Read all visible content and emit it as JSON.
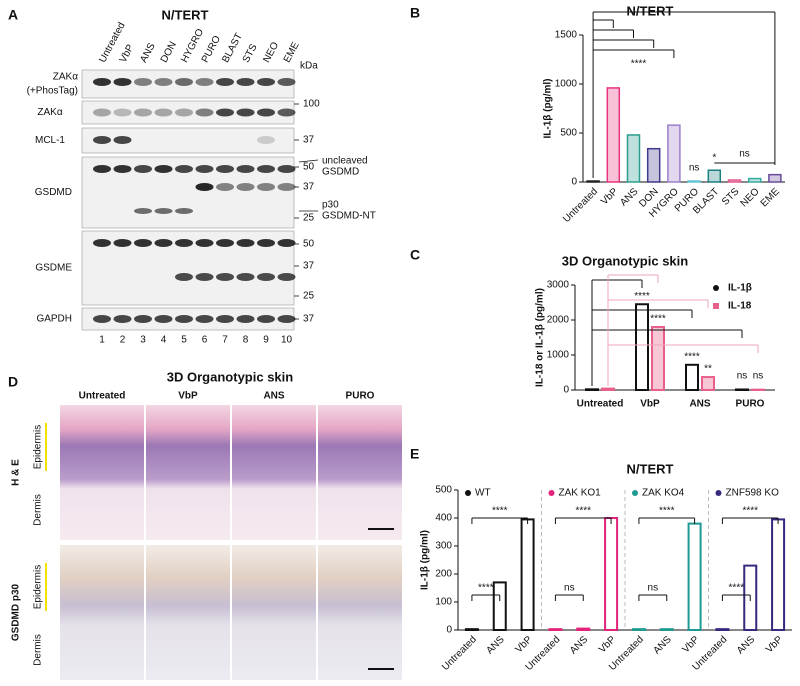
{
  "panel_a": {
    "label": "A",
    "title": "N/TERT",
    "lanes": [
      "Untreated",
      "VbP",
      "ANS",
      "DON",
      "HYGRO",
      "PURO",
      "BLAST",
      "STS",
      "NEO",
      "EME"
    ],
    "kda": "kDa",
    "rows": [
      {
        "label": "ZAKα",
        "sublabel": "(+PhosTag)",
        "markers": []
      },
      {
        "label": "ZAKα",
        "markers": [
          100
        ]
      },
      {
        "label": "MCL-1",
        "markers": [
          37
        ]
      },
      {
        "label": "GSDMD",
        "markers": [
          50,
          37,
          25
        ]
      },
      {
        "label": "GSDME",
        "markers": [
          50,
          37,
          25
        ]
      },
      {
        "label": "GAPDH",
        "markers": [
          37
        ]
      }
    ],
    "uncleaved": [
      "uncleaved",
      "GSDMD"
    ],
    "p30": [
      "p30",
      "GSDMD-NT"
    ],
    "lane_numbers": [
      1,
      2,
      3,
      4,
      5,
      6,
      7,
      8,
      9,
      10
    ]
  },
  "panel_d": {
    "label": "D",
    "title": "3D Organotypic skin",
    "columns": [
      "Untreated",
      "VbP",
      "ANS",
      "PURO"
    ],
    "rows": [
      "H & E",
      "GSDMD p30"
    ],
    "layers": [
      "Epidermis",
      "Dermis"
    ]
  },
  "chart_data": [
    {
      "type": "bar",
      "label": "B",
      "title": "N/TERT",
      "y_label": "IL-1β (pg/ml)",
      "categories": [
        "Untreated",
        "VbP",
        "ANS",
        "DON",
        "HYGRO",
        "PURO",
        "BLAST",
        "STS",
        "NEO",
        "EME"
      ],
      "values": [
        10,
        960,
        480,
        340,
        580,
        10,
        120,
        20,
        35,
        75
      ],
      "colors": [
        "#222222",
        "#e8337f",
        "#2a9d8f",
        "#3f3a8c",
        "#9b7fc9",
        "#63c5d6",
        "#1d7f7f",
        "#e2558c",
        "#35a8a0",
        "#6a4c9c"
      ],
      "ylim": [
        0,
        1500
      ],
      "yticks": [
        0,
        500,
        1000,
        1500
      ],
      "significance": [
        "****",
        "ns",
        "*",
        "ns"
      ]
    },
    {
      "type": "grouped_bar",
      "label": "C",
      "title": "3D Organotypic skin",
      "y_label": "IL-18 or IL-1β (pg/ml)",
      "categories": [
        "Untreated",
        "VbP",
        "ANS",
        "PURO"
      ],
      "series": [
        {
          "name": "IL-1β",
          "color": "#111111",
          "values": [
            20,
            2450,
            720,
            15
          ],
          "significance": [
            "****",
            "****",
            "ns"
          ]
        },
        {
          "name": "IL-18",
          "color": "#e8608a",
          "values": [
            40,
            1800,
            370,
            10
          ],
          "significance": [
            "****",
            "**",
            "ns"
          ]
        }
      ],
      "ylim": [
        0,
        3000
      ],
      "yticks": [
        0,
        1000,
        2000,
        3000
      ]
    },
    {
      "type": "faceted_bar",
      "label": "E",
      "title": "N/TERT",
      "y_label": "IL-1β (pg/ml)",
      "ylim": [
        0,
        500
      ],
      "yticks": [
        0,
        100,
        200,
        300,
        400,
        500
      ],
      "groups": [
        {
          "name": "WT",
          "color": "#111111",
          "categories": [
            "Untreated",
            "ANS",
            "VbP"
          ],
          "values": [
            3,
            170,
            395
          ],
          "significance": [
            "****",
            "****"
          ]
        },
        {
          "name": "ZAK KO1",
          "color": "#e3237a",
          "categories": [
            "Untreated",
            "ANS",
            "VbP"
          ],
          "values": [
            3,
            5,
            400
          ],
          "significance": [
            "ns",
            "****"
          ]
        },
        {
          "name": "ZAK KO4",
          "color": "#1f9a93",
          "categories": [
            "Untreated",
            "ANS",
            "VbP"
          ],
          "values": [
            3,
            3,
            380
          ],
          "significance": [
            "ns",
            "****"
          ]
        },
        {
          "name": "ZNF598 KO",
          "color": "#35287e",
          "categories": [
            "Untreated",
            "ANS",
            "VbP"
          ],
          "values": [
            3,
            230,
            395
          ],
          "significance": [
            "****",
            "****"
          ]
        }
      ]
    }
  ]
}
